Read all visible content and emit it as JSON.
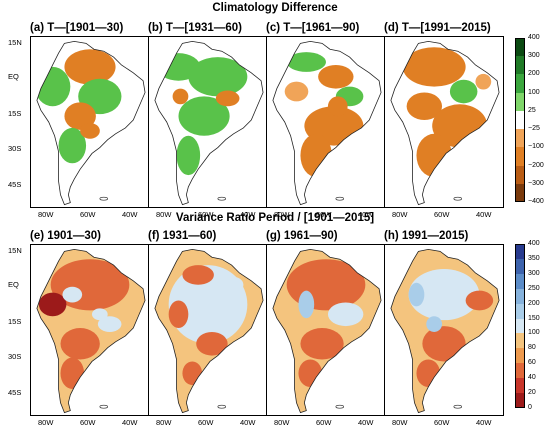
{
  "titles": {
    "top": "Climatology Difference",
    "bottom": "Variance Ratio Period / [1901—2015]"
  },
  "panels_top": [
    {
      "label": "(a) T—[1901—30)"
    },
    {
      "label": "(b) T—[1931—60)"
    },
    {
      "label": "(c) T—[1961—90)"
    },
    {
      "label": "(d) T—[1991—2015)"
    }
  ],
  "panels_bottom": [
    {
      "label": "(e) 1901—30)"
    },
    {
      "label": "(f) 1931—60)"
    },
    {
      "label": "(g) 1961—90)"
    },
    {
      "label": "(h) 1991—2015)"
    }
  ],
  "lat_ticks": [
    "15N",
    "EQ",
    "15S",
    "30S",
    "45S"
  ],
  "lon_ticks": [
    "80W",
    "60W",
    "40W"
  ],
  "colorbar_top": {
    "labels": [
      "400",
      "300",
      "200",
      "100",
      "25",
      "−25",
      "−100",
      "−200",
      "−300",
      "−400"
    ],
    "colors": [
      "#0b4a12",
      "#1f7a26",
      "#3aa63d",
      "#7fd66a",
      "#ffffff",
      "#f0a458",
      "#e07f24",
      "#b95c14",
      "#7a3a0c"
    ]
  },
  "colorbar_bottom": {
    "labels": [
      "400",
      "350",
      "300",
      "250",
      "200",
      "150",
      "100",
      "80",
      "60",
      "40",
      "20",
      "0"
    ],
    "colors": [
      "#283b8f",
      "#3d63ad",
      "#5b8cc8",
      "#86b2dc",
      "#a9cde9",
      "#d6e7f3",
      "#f4c47e",
      "#ee9a4e",
      "#e0683a",
      "#c8352a",
      "#9c1a1a"
    ]
  },
  "map_colors": {
    "top": {
      "fill_a": "#e07f24",
      "fill_b": "#59c24a",
      "fill_c": "#f0a458",
      "land_white": "#ffffff"
    },
    "bottom": {
      "fill_a": "#e0683a",
      "fill_b": "#d6e7f3",
      "fill_c": "#a9cde9",
      "fill_d": "#9c1a1a"
    }
  }
}
